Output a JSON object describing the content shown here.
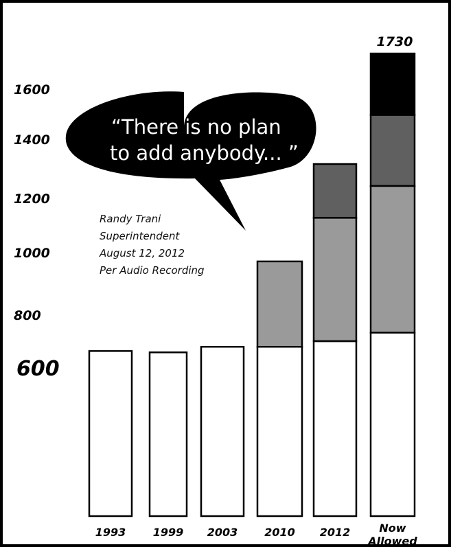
{
  "chart_data": {
    "type": "bar",
    "stacked": true,
    "categories": [
      "1993",
      "1999",
      "2003",
      "2010",
      "2012",
      "Now Allowed"
    ],
    "segments": [
      [
        660
      ],
      [
        655
      ],
      [
        675
      ],
      [
        675,
        295
      ],
      [
        695,
        435,
        190
      ],
      [
        725,
        520,
        255,
        230
      ]
    ],
    "segment_colors": [
      "#ffffff",
      "#9a9a9a",
      "#606060",
      "#000000"
    ],
    "top_label": {
      "category": "Now Allowed",
      "text": "1730"
    },
    "y_ticks": [
      "600",
      "800",
      "1000",
      "1200",
      "1400",
      "1600"
    ],
    "quote": {
      "lines": [
        "“There is no plan",
        "to add anybody...  ”"
      ]
    },
    "attribution": {
      "lines": [
        "Randy Trani",
        "Superintendent",
        "August 12, 2012",
        "Per Audio Recording"
      ]
    },
    "grid": false,
    "legend": "none"
  }
}
